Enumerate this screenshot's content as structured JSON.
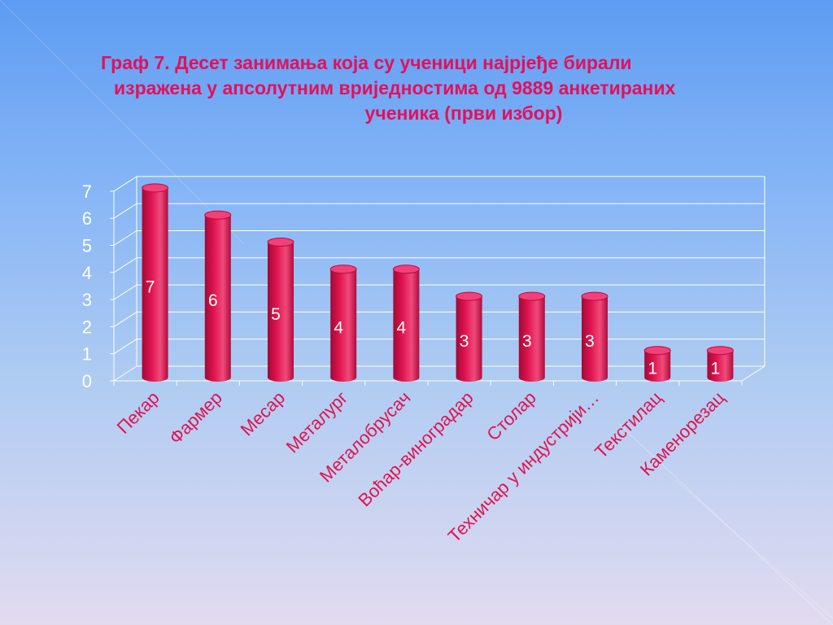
{
  "title": {
    "line1": "Граф 7.  Десет  занимања која су ученици најрјеђе бирали",
    "line2": "изражена у апсолутним вриједностима од 9889 анкетираних",
    "line3": "ученика (први избор)"
  },
  "chart_data": {
    "type": "bar",
    "categories": [
      "Пекар",
      "Фармер",
      "Месар",
      "Металург",
      "Металобрусач",
      "Воћар-виноградар",
      "Столар",
      "Техничар у индустрији…",
      "Текстилац",
      "Каменорезац"
    ],
    "values": [
      7,
      6,
      5,
      4,
      4,
      3,
      3,
      3,
      1,
      1
    ],
    "data_labels": [
      "7",
      "6",
      "5",
      "4",
      "4",
      "3",
      "3",
      "3",
      "1",
      "1"
    ],
    "y_ticks": [
      "0",
      "1",
      "2",
      "3",
      "4",
      "5",
      "6",
      "7"
    ],
    "ylim": [
      0,
      7
    ],
    "grid": true,
    "style": "3d-cylinder",
    "bar_color": "#e0134f",
    "label_color": "#e0134f",
    "tick_color": "#ffffff"
  }
}
